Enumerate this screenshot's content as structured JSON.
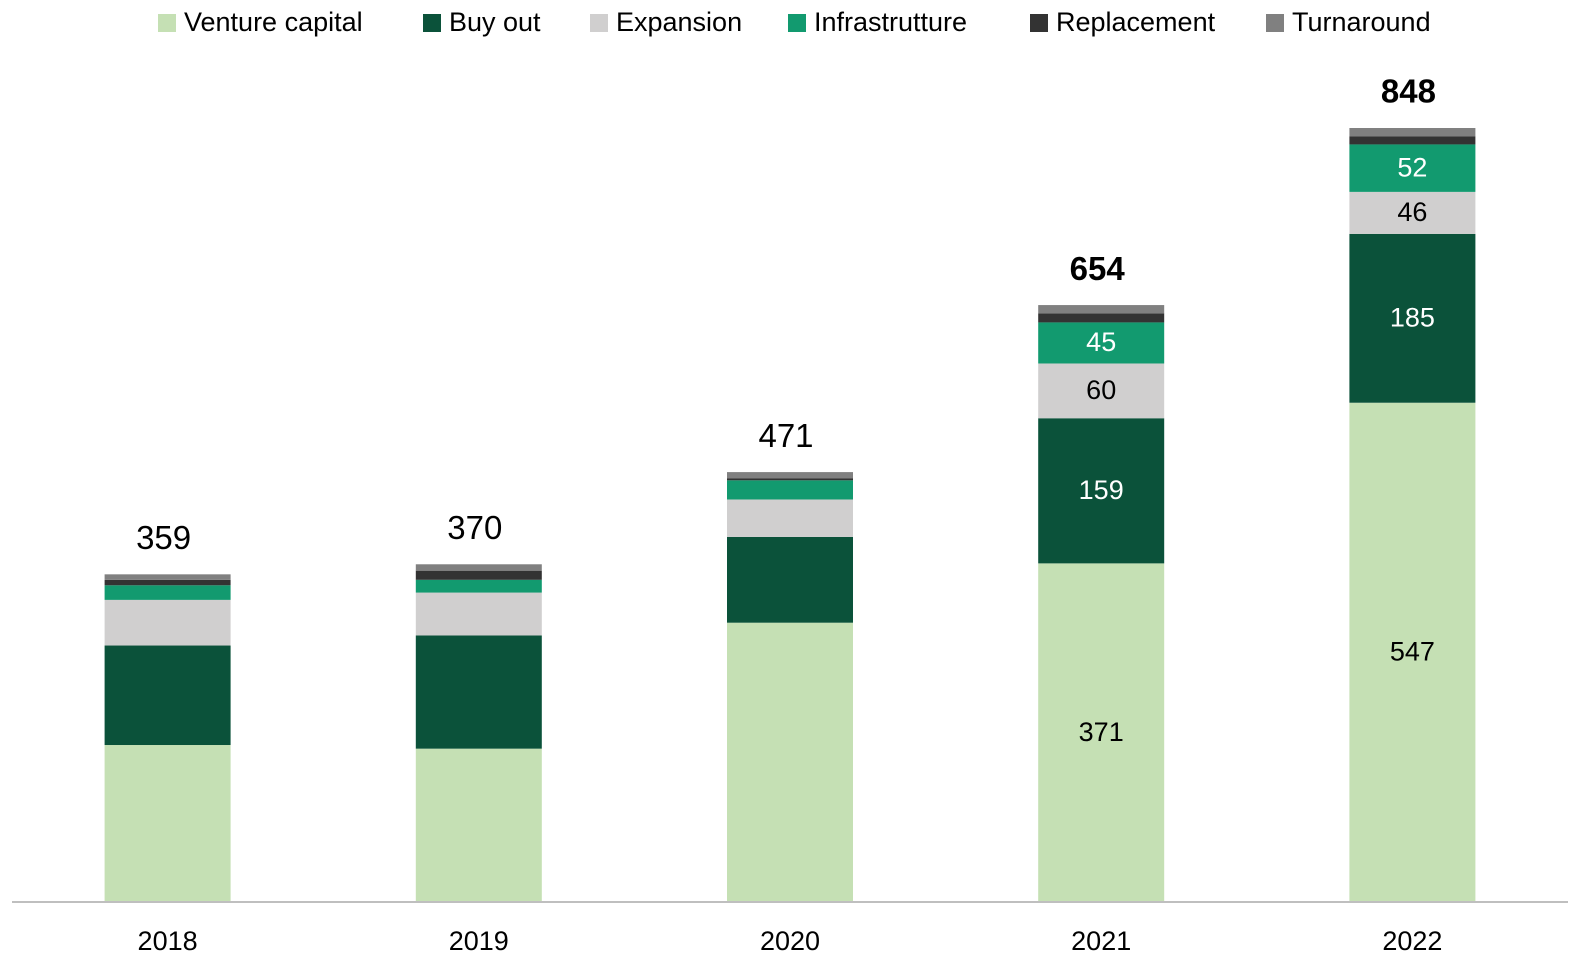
{
  "chart_data": {
    "type": "stacked_bar",
    "categories": [
      "2018",
      "2019",
      "2020",
      "2021",
      "2022"
    ],
    "series": [
      {
        "name": "Venture capital",
        "color": "#c5e0b4",
        "values": [
          172,
          168,
          306,
          371,
          547
        ],
        "value_labels": [
          null,
          null,
          null,
          "371",
          "547"
        ]
      },
      {
        "name": "Buy out",
        "color": "#0b523a",
        "values": [
          109,
          124,
          94,
          159,
          185
        ],
        "value_labels": [
          null,
          null,
          null,
          "159",
          "185"
        ]
      },
      {
        "name": "Expansion",
        "color": "#d0cfcf",
        "values": [
          50,
          47,
          41,
          60,
          46
        ],
        "value_labels": [
          null,
          null,
          null,
          "60",
          "46"
        ]
      },
      {
        "name": "Infrastrutture",
        "color": "#129a6f",
        "values": [
          16,
          14,
          21,
          45,
          52
        ],
        "value_labels": [
          null,
          null,
          null,
          "45",
          "52"
        ]
      },
      {
        "name": "Replacement",
        "color": "#333333",
        "values": [
          6,
          10,
          2,
          10,
          9
        ]
      },
      {
        "name": "Turnaround",
        "color": "#808080",
        "values": [
          6,
          7,
          7,
          9,
          9
        ]
      }
    ],
    "totals": [
      359,
      370,
      471,
      654,
      848
    ],
    "totals_bold": [
      false,
      false,
      false,
      true,
      true
    ],
    "legend": "top"
  }
}
